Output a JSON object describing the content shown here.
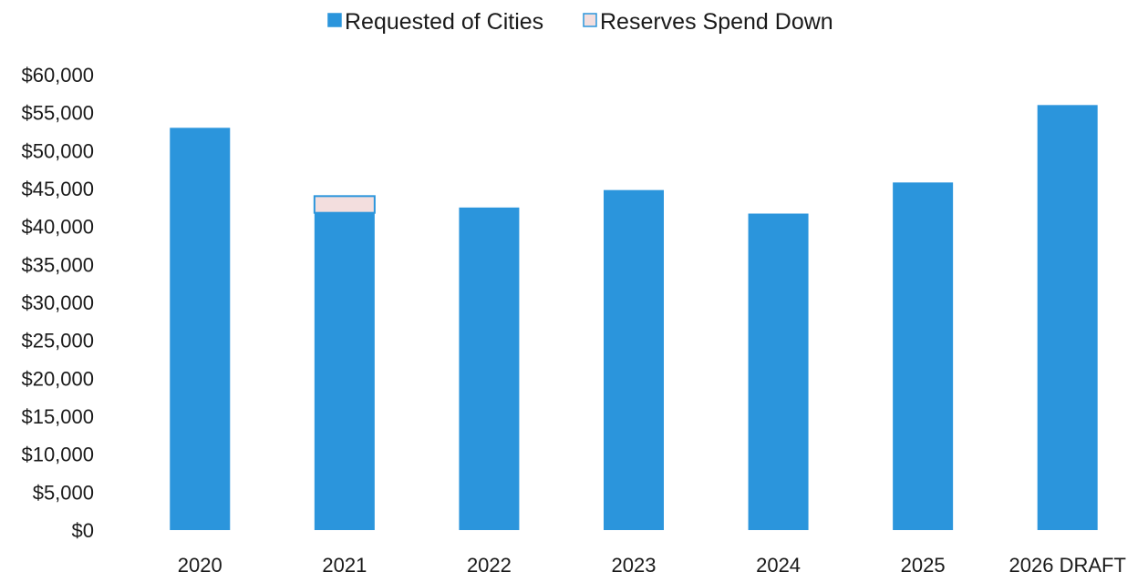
{
  "chart_data": {
    "type": "bar",
    "stacked": true,
    "categories": [
      "2020",
      "2021",
      "2022",
      "2023",
      "2024",
      "2025",
      "2026 DRAFT"
    ],
    "series": [
      {
        "name": "Requested of Cities",
        "values": [
          53000,
          41800,
          42500,
          44800,
          41700,
          45800,
          56000
        ],
        "color": "#2b95dc"
      },
      {
        "name": "Reserves Spend Down",
        "values": [
          0,
          2200,
          0,
          0,
          0,
          0,
          0
        ],
        "color": "#f3dede",
        "stroke": "#2b95dc"
      }
    ],
    "yticks": [
      "$0",
      "$5,000",
      "$10,000",
      "$15,000",
      "$20,000",
      "$25,000",
      "$30,000",
      "$35,000",
      "$40,000",
      "$45,000",
      "$50,000",
      "$55,000",
      "$60,000"
    ],
    "ylim": [
      0,
      60000
    ],
    "grid": false,
    "legend": "top-center",
    "title": "",
    "xlabel": "",
    "ylabel": ""
  }
}
